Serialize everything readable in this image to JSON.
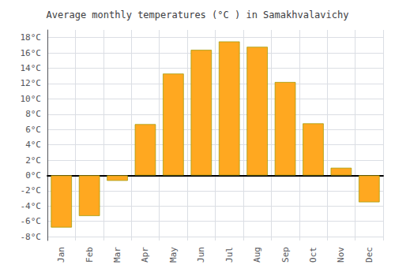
{
  "chart_data": {
    "type": "bar",
    "title": "Average monthly temperatures (°C ) in Samakhvalavichy",
    "categories": [
      "Jan",
      "Feb",
      "Mar",
      "Apr",
      "May",
      "Jun",
      "Jul",
      "Aug",
      "Sep",
      "Oct",
      "Nov",
      "Dec"
    ],
    "values": [
      -6.8,
      -5.3,
      -0.7,
      6.7,
      13.3,
      16.4,
      17.5,
      16.8,
      12.2,
      6.8,
      1.0,
      -3.5
    ],
    "color": "#FFA820",
    "ylim": [
      -8.5,
      19
    ],
    "yticks": [
      {
        "value": -8,
        "label": "-8°C"
      },
      {
        "value": -6,
        "label": "-6°C"
      },
      {
        "value": -4,
        "label": "-4°C"
      },
      {
        "value": -2,
        "label": "-2°C"
      },
      {
        "value": 0,
        "label": "0°C"
      },
      {
        "value": 2,
        "label": "2°C"
      },
      {
        "value": 4,
        "label": "4°C"
      },
      {
        "value": 6,
        "label": "6°C"
      },
      {
        "value": 8,
        "label": "8°C"
      },
      {
        "value": 10,
        "label": "10°C"
      },
      {
        "value": 12,
        "label": "12°C"
      },
      {
        "value": 14,
        "label": "14°C"
      },
      {
        "value": 16,
        "label": "16°C"
      },
      {
        "value": 18,
        "label": "18°C"
      }
    ],
    "grid": true
  }
}
